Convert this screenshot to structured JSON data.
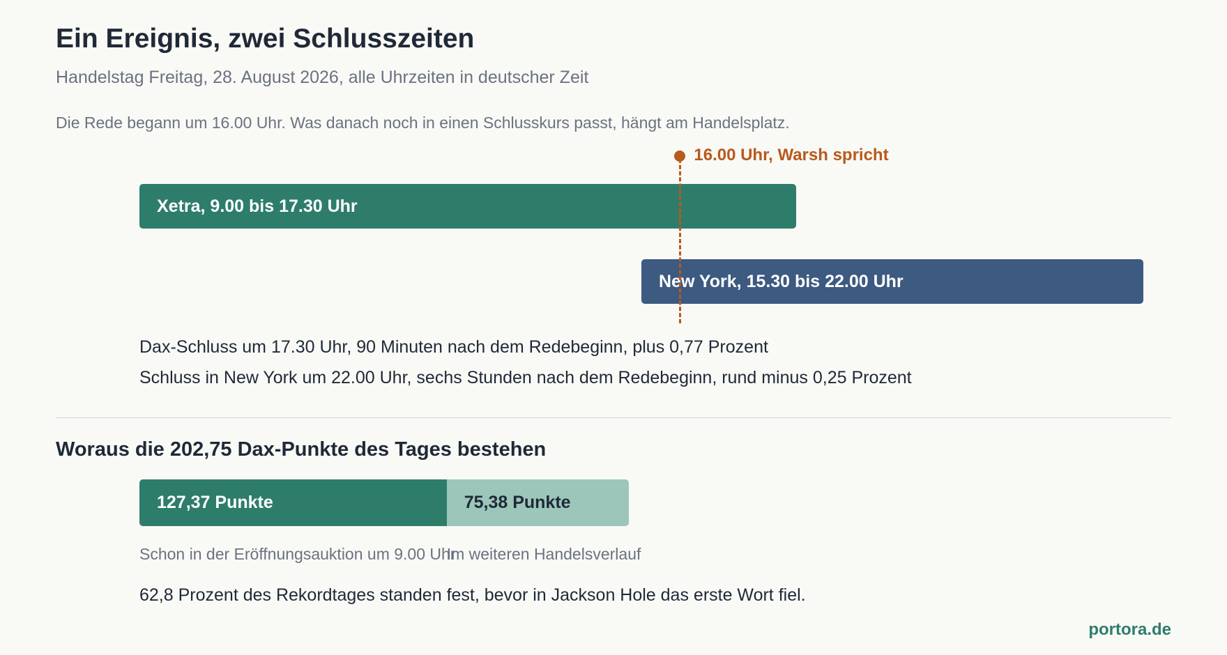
{
  "header": {
    "title": "Ein Ereignis, zwei Schlusszeiten",
    "subtitle": "Handelstag Freitag, 28. August 2026, alle Uhrzeiten in deutscher Zeit",
    "intro": "Die Rede begann um 16.00 Uhr. Was danach noch in einen Schlusskurs passt, hängt am Handelsplatz."
  },
  "chart_data": [
    {
      "type": "bar",
      "orientation": "horizontal-timeline",
      "x_unit": "Uhr (deutsche Zeit)",
      "x_range": [
        9.0,
        22.0
      ],
      "series": [
        {
          "label": "Xetra, 9.00 bis 17.30 Uhr",
          "start": 9.0,
          "end": 17.5,
          "color": "#2e7d6b"
        },
        {
          "label": "New York, 15.30 bis 22.00 Uhr",
          "start": 15.5,
          "end": 22.0,
          "color": "#3d5a80"
        }
      ],
      "marker": {
        "label": "16.00 Uhr, Warsh spricht",
        "x": 16.0,
        "color": "#b85a1c"
      },
      "notes": [
        "Dax-Schluss um 17.30 Uhr, 90 Minuten nach dem Redebeginn, plus 0,77 Prozent",
        "Schluss in New York um 22.00 Uhr, sechs Stunden nach dem Redebeginn, rund minus 0,25 Prozent"
      ]
    },
    {
      "type": "bar",
      "orientation": "stacked-horizontal",
      "title": "Woraus die 202,75 Dax-Punkte des Tages bestehen",
      "total": 202.75,
      "segments": [
        {
          "value": 127.37,
          "label": "127,37 Punkte",
          "caption": "Schon in der Eröffnungsauktion um 9.00 Uhr",
          "color": "#2e7d6b",
          "text_color": "#ffffff"
        },
        {
          "value": 75.38,
          "label": "75,38 Punkte",
          "caption": "Im weiteren Handelsverlauf",
          "color": "#9cc6b9",
          "text_color": "#1f2937"
        }
      ],
      "takeaway": "62,8 Prozent des Rekordtages standen fest, bevor in Jackson Hole das erste Wort fiel."
    }
  ],
  "footer": {
    "source": "portora.de"
  }
}
